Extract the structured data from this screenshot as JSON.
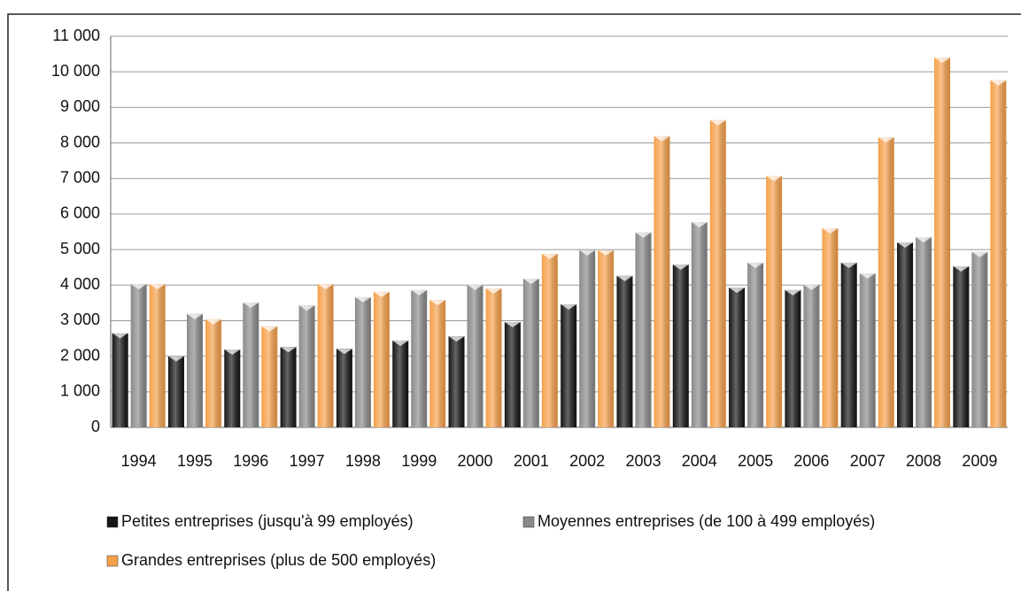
{
  "chart_data": {
    "type": "bar",
    "categories": [
      "1994",
      "1995",
      "1996",
      "1997",
      "1998",
      "1999",
      "2000",
      "2001",
      "2002",
      "2003",
      "2004",
      "2005",
      "2006",
      "2007",
      "2008",
      "2009"
    ],
    "series": [
      {
        "name": "Petites entreprises (jusqu'à 99 employés)",
        "color": "#151515",
        "values": [
          2650,
          2000,
          2190,
          2260,
          2210,
          2440,
          2560,
          2960,
          3460,
          4260,
          4580,
          3930,
          3860,
          4630,
          5200,
          4530
        ]
      },
      {
        "name": "Moyennes entreprises (de 100 à 499 employés)",
        "color": "#8a8a8a",
        "values": [
          4030,
          3190,
          3510,
          3430,
          3660,
          3860,
          4010,
          4180,
          4980,
          5480,
          5770,
          4630,
          4010,
          4330,
          5350,
          4930
        ]
      },
      {
        "name": "Grandes entreprises (plus de 500 employés)",
        "color": "#f5a04a",
        "values": [
          4030,
          3040,
          2840,
          4030,
          3810,
          3580,
          3910,
          4880,
          4980,
          8190,
          8640,
          7070,
          5600,
          8160,
          10400,
          9760
        ]
      }
    ],
    "ylim": [
      0,
      11000
    ],
    "yticks": [
      0,
      {
        "value": 1000,
        "label": "1 000"
      },
      {
        "value": 2000,
        "label": "2 000"
      },
      {
        "value": 3000,
        "label": "3 000"
      },
      {
        "value": 4000,
        "label": "4 000"
      },
      {
        "value": 5000,
        "label": "5 000"
      },
      {
        "value": 6000,
        "label": "6 000"
      },
      {
        "value": 7000,
        "label": "7 000"
      },
      {
        "value": 8000,
        "label": "8 000"
      },
      {
        "value": 9000,
        "label": "9 000"
      },
      {
        "value": 10000,
        "label": "10 000"
      },
      {
        "value": 11000,
        "label": "11 000"
      }
    ],
    "grid": true,
    "legend": "bottom"
  }
}
